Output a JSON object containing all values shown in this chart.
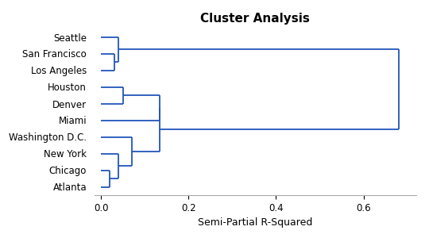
{
  "title": "Cluster Analysis",
  "xlabel": "Semi-Partial R-Squared",
  "labels": [
    "Seattle",
    "San Francisco",
    "Los Angeles",
    "Houston",
    "Denver",
    "Miami",
    "Washington D.C.",
    "New York",
    "Chicago",
    "Atlanta"
  ],
  "line_color": "#2255bb",
  "line_width": 1.3,
  "xlim": [
    -0.015,
    0.72
  ],
  "ylim": [
    -0.5,
    9.5
  ],
  "background_color": "#ffffff",
  "title_fontsize": 11,
  "axis_fontsize": 9,
  "tick_fontsize": 8.5
}
